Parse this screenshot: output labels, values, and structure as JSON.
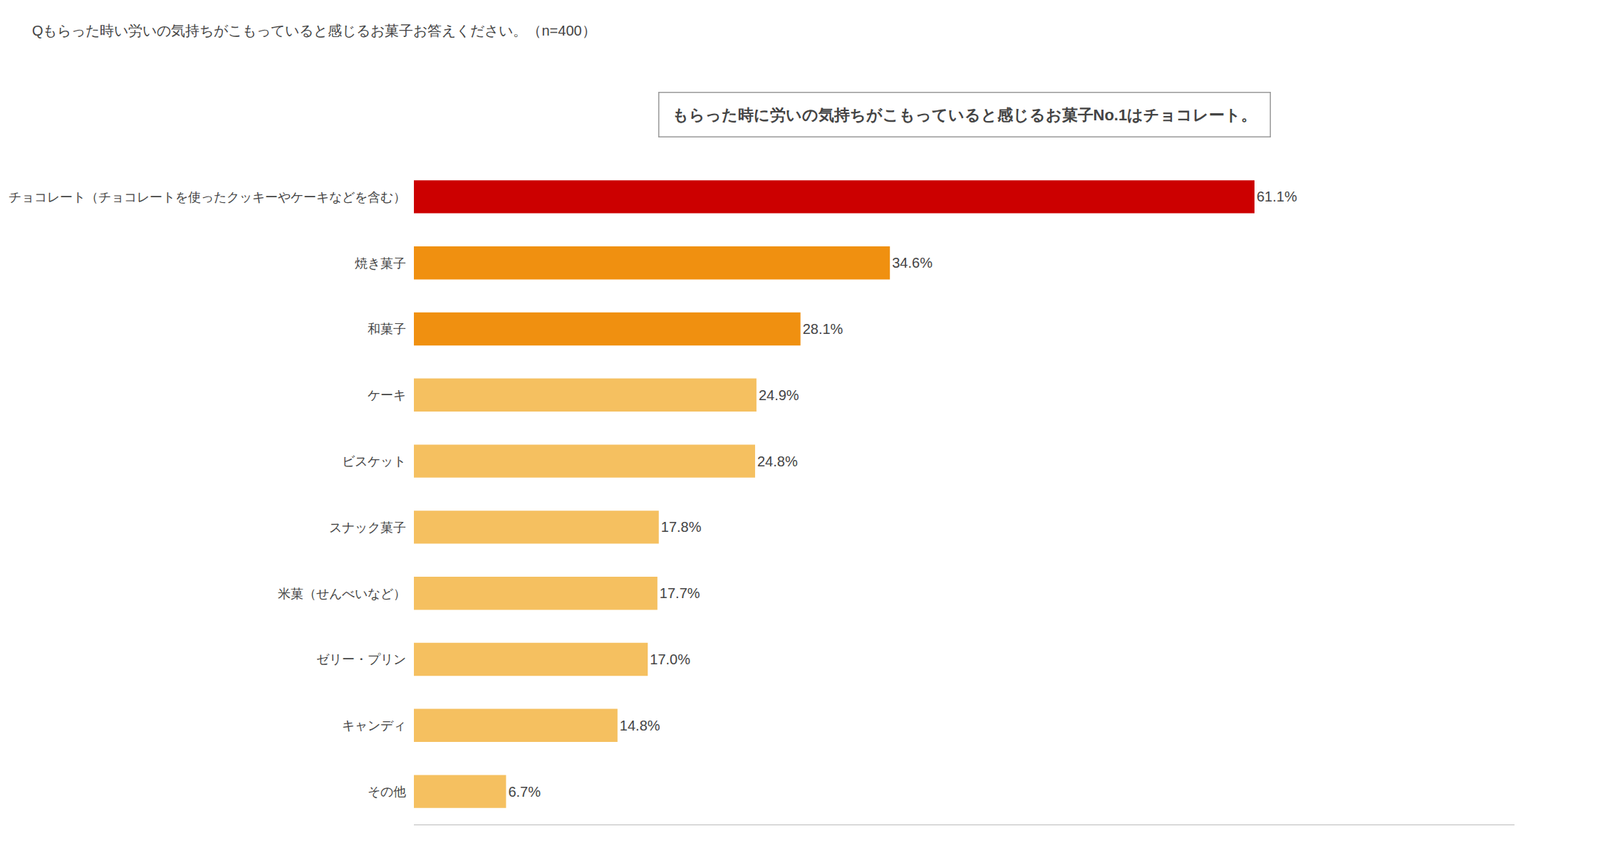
{
  "chart_data": {
    "type": "bar",
    "orientation": "horizontal",
    "title": "Qもらった時い労いの気持ちがこもっていると感じるお菓子お答えください。（n=400）",
    "subtitle": "もらった時に労いの気持ちがこもっていると感じるお菓子No.1はチョコレート。",
    "categories": [
      "チョコレート（チョコレートを使ったクッキーやケーキなどを含む）",
      "焼き菓子",
      "和菓子",
      "ケーキ",
      "ビスケット",
      "スナック菓子",
      "米菓（せんべいなど）",
      "ゼリー・プリン",
      "キャンディ",
      "その他"
    ],
    "values": [
      61.1,
      34.6,
      28.1,
      24.9,
      24.8,
      17.8,
      17.7,
      17.0,
      14.8,
      6.7
    ],
    "value_labels": [
      "61.1%",
      "34.6%",
      "28.1%",
      "24.9%",
      "24.8%",
      "17.8%",
      "17.7%",
      "17.0%",
      "14.8%",
      "6.7%"
    ],
    "data_labels": true,
    "colors": [
      "#cc0000",
      "#f09010",
      "#f09010",
      "#f5c060",
      "#f5c060",
      "#f5c060",
      "#f5c060",
      "#f5c060",
      "#f5c060",
      "#f5c060"
    ],
    "xlim": [
      0,
      80
    ],
    "grid": false,
    "tick_labels": "y"
  }
}
